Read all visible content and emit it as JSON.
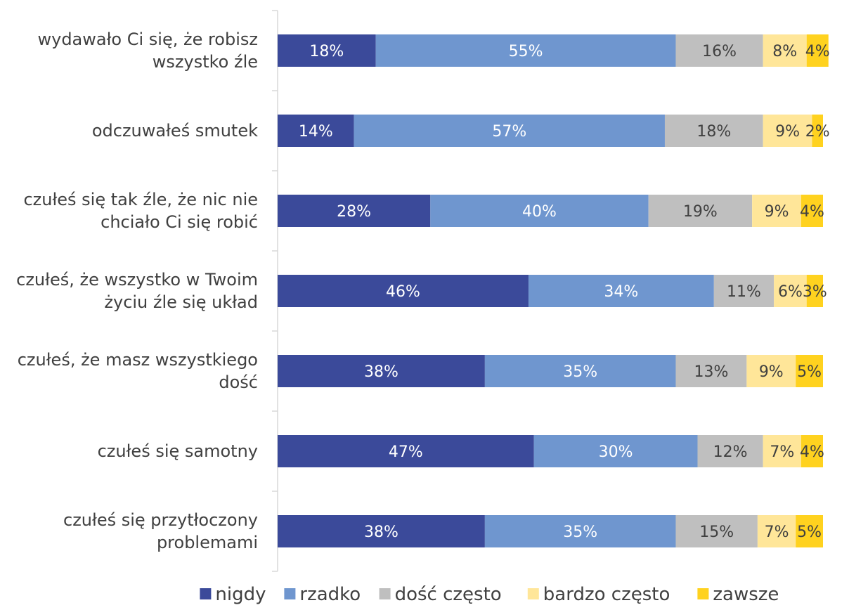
{
  "chart_data": {
    "type": "bar",
    "orientation": "horizontal",
    "stacked": true,
    "percent_stacked": true,
    "categories": [
      [
        "wydawało Ci się, że robisz",
        "wszystko źle"
      ],
      [
        "odczuwałeś smutek"
      ],
      [
        "czułeś się tak źle, że nic nie",
        "chciało Ci się robić"
      ],
      [
        "czułeś, że wszystko w Twoim",
        "życiu źle się układ"
      ],
      [
        "czułeś, że masz wszystkiego",
        "dość"
      ],
      [
        "czułeś się samotny"
      ],
      [
        "czułeś się przytłoczony",
        "problemami"
      ]
    ],
    "series": [
      {
        "name": "nigdy",
        "color": "#3b4a9a",
        "label_color": "#ffffff",
        "values": [
          18,
          14,
          28,
          46,
          38,
          47,
          38
        ]
      },
      {
        "name": "rzadko",
        "color": "#6f96cf",
        "label_color": "#ffffff",
        "values": [
          55,
          57,
          40,
          34,
          35,
          30,
          35
        ]
      },
      {
        "name": "dość często",
        "color": "#bfbfbf",
        "label_color": "#404040",
        "values": [
          16,
          18,
          19,
          11,
          13,
          12,
          15
        ]
      },
      {
        "name": "bardzo często",
        "color": "#ffe699",
        "label_color": "#404040",
        "values": [
          8,
          9,
          9,
          6,
          9,
          7,
          7
        ]
      },
      {
        "name": "zawsze",
        "color": "#ffd21f",
        "label_color": "#404040",
        "values": [
          4,
          2,
          4,
          3,
          5,
          4,
          5
        ]
      }
    ],
    "value_suffix": "%",
    "grid": false,
    "legend_position": "bottom"
  }
}
